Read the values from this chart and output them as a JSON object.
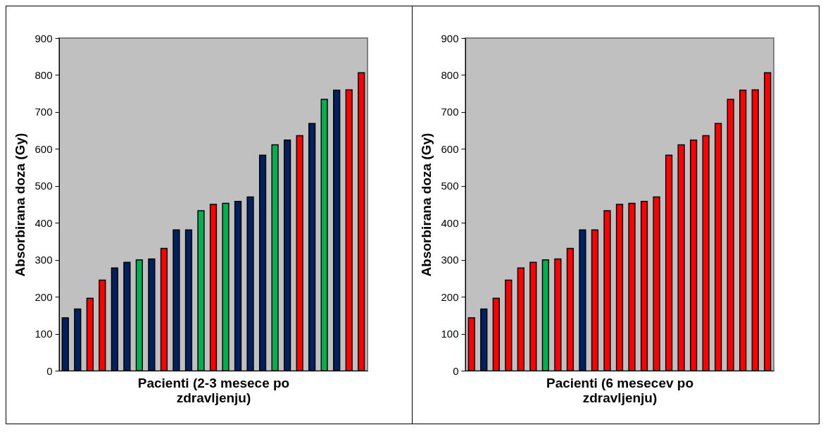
{
  "chart_data": [
    {
      "type": "bar",
      "xlabel": "Pacienti (2-3 mesece po zdravljenju)",
      "ylabel": "Absorbirana doza (Gy)",
      "categories": [
        null,
        null,
        null,
        null,
        null,
        null,
        null,
        null,
        null,
        null,
        null,
        null,
        null,
        null,
        null,
        null,
        null,
        null,
        null,
        null,
        null,
        null,
        null,
        null,
        null
      ],
      "values": [
        143,
        167,
        196,
        245,
        278,
        293,
        300,
        302,
        331,
        381,
        381,
        433,
        450,
        453,
        458,
        470,
        583,
        611,
        624,
        636,
        669,
        734,
        759,
        760,
        806
      ],
      "colors": [
        "#002060",
        "#002060",
        "#ff0000",
        "#ff0000",
        "#002060",
        "#002060",
        "#00b050",
        "#002060",
        "#ff0000",
        "#002060",
        "#002060",
        "#00b050",
        "#ff0000",
        "#00b050",
        "#002060",
        "#002060",
        "#002060",
        "#00b050",
        "#002060",
        "#ff0000",
        "#002060",
        "#00b050",
        "#002060",
        "#ff0000",
        "#ff0000"
      ],
      "ylim": [
        0,
        900
      ],
      "yticks": [
        0,
        100,
        200,
        300,
        400,
        500,
        600,
        700,
        800,
        900
      ],
      "tick_labels": "y"
    },
    {
      "type": "bar",
      "xlabel": "Pacienti (6 mesecev po zdravljenju)",
      "ylabel": "Absorbirana doza (Gy)",
      "categories": [
        null,
        null,
        null,
        null,
        null,
        null,
        null,
        null,
        null,
        null,
        null,
        null,
        null,
        null,
        null,
        null,
        null,
        null,
        null,
        null,
        null,
        null,
        null,
        null,
        null
      ],
      "values": [
        143,
        167,
        196,
        245,
        278,
        293,
        300,
        302,
        331,
        381,
        381,
        433,
        450,
        453,
        458,
        470,
        583,
        611,
        624,
        636,
        669,
        734,
        759,
        760,
        806
      ],
      "colors": [
        "#ff0000",
        "#002060",
        "#ff0000",
        "#ff0000",
        "#ff0000",
        "#ff0000",
        "#00b050",
        "#ff0000",
        "#ff0000",
        "#002060",
        "#ff0000",
        "#ff0000",
        "#ff0000",
        "#ff0000",
        "#ff0000",
        "#ff0000",
        "#ff0000",
        "#ff0000",
        "#ff0000",
        "#ff0000",
        "#ff0000",
        "#ff0000",
        "#ff0000",
        "#ff0000",
        "#ff0000"
      ],
      "ylim": [
        0,
        900
      ],
      "yticks": [
        0,
        100,
        200,
        300,
        400,
        500,
        600,
        700,
        800,
        900
      ],
      "tick_labels": "y"
    }
  ]
}
